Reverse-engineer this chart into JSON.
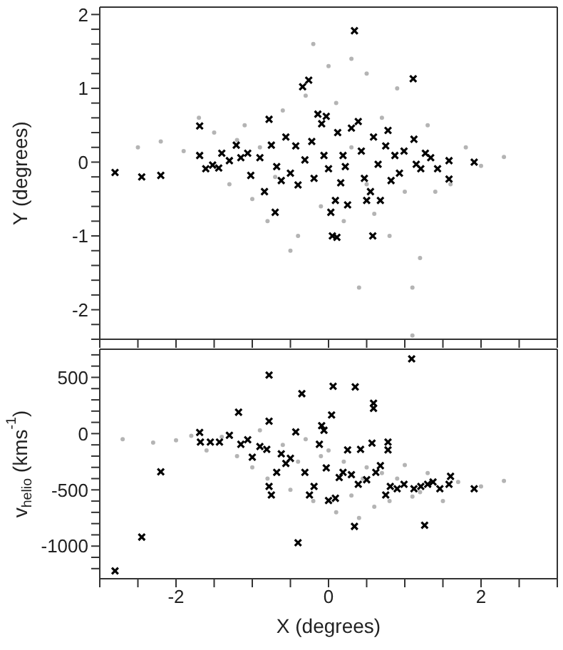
{
  "chart_data": [
    {
      "type": "scatter",
      "ylabel": "Y (degrees)",
      "tick_labels": "y",
      "xlim": [
        -3,
        3
      ],
      "xticks": [
        {
          "value": -3,
          "label": null
        },
        {
          "value": -2.5,
          "label": null
        },
        -2,
        {
          "value": -1.5,
          "label": null
        },
        {
          "value": -1,
          "label": null
        },
        {
          "value": -0.5,
          "label": null
        },
        0,
        {
          "value": 0.5,
          "label": null
        },
        {
          "value": 1,
          "label": null
        },
        {
          "value": 1.5,
          "label": null
        },
        2,
        {
          "value": 2.5,
          "label": null
        },
        {
          "value": 3,
          "label": null
        }
      ],
      "ylim": [
        -2.4,
        2.1
      ],
      "yticks": [
        {
          "value": -2.4,
          "label": null
        },
        {
          "value": -2.2,
          "label": null
        },
        -2,
        {
          "value": -1.8,
          "label": null
        },
        {
          "value": -1.6,
          "label": null
        },
        {
          "value": -1.4,
          "label": null
        },
        {
          "value": -1.2,
          "label": null
        },
        -1,
        {
          "value": -0.8,
          "label": null
        },
        {
          "value": -0.6,
          "label": null
        },
        {
          "value": -0.4,
          "label": null
        },
        {
          "value": -0.2,
          "label": null
        },
        0,
        {
          "value": 0.2,
          "label": null
        },
        {
          "value": 0.4,
          "label": null
        },
        {
          "value": 0.6,
          "label": null
        },
        {
          "value": 0.8,
          "label": null
        },
        1,
        {
          "value": 1.2,
          "label": null
        },
        {
          "value": 1.4,
          "label": null
        },
        {
          "value": 1.6,
          "label": null
        },
        {
          "value": 1.8,
          "label": null
        },
        2
      ],
      "series": [
        {
          "type": "scatter",
          "marker": "circle",
          "color": "#b4b4b4",
          "x": [
            -2.5,
            -2.2,
            -1.9,
            -1.7,
            -1.5,
            -1.3,
            -1.1,
            -1.0,
            -0.8,
            -0.6,
            -0.5,
            -0.4,
            -0.3,
            -0.2,
            -0.1,
            0.0,
            0.1,
            0.2,
            0.3,
            0.4,
            0.5,
            0.6,
            0.7,
            0.8,
            0.9,
            1.0,
            1.1,
            1.2,
            1.3,
            1.4,
            1.6,
            1.8,
            2.0,
            2.3,
            -0.9,
            -0.7,
            0.3,
            0.5,
            1.1,
            -1.2
          ],
          "values": [
            0.2,
            0.28,
            0.15,
            0.6,
            0.4,
            -0.3,
            0.5,
            -0.5,
            -0.8,
            0.7,
            -1.2,
            -1.0,
            0.9,
            1.6,
            -0.6,
            1.3,
            0.8,
            -0.8,
            1.4,
            -1.7,
            1.2,
            -0.7,
            0.6,
            -1.0,
            1.0,
            -0.4,
            -1.7,
            -1.3,
            0.5,
            -0.4,
            -0.3,
            0.2,
            -0.05,
            0.07,
            0.2,
            -0.2,
            0.2,
            -0.3,
            -2.35,
            0.3
          ]
        },
        {
          "type": "scatter",
          "marker": "cross",
          "color": "#000000",
          "x": [
            -2.8,
            -2.45,
            -2.2,
            -1.69,
            -1.69,
            -1.61,
            -1.52,
            -1.44,
            -1.4,
            -1.3,
            -1.21,
            -1.15,
            -1.06,
            -1.02,
            -0.9,
            -0.84,
            -0.78,
            -0.75,
            -0.7,
            -0.68,
            -0.62,
            -0.56,
            -0.5,
            -0.43,
            -0.4,
            -0.34,
            -0.26,
            -0.31,
            -0.22,
            -0.19,
            -0.14,
            -0.09,
            -0.06,
            -0.03,
            0.0,
            0.03,
            0.05,
            0.11,
            0.09,
            0.12,
            0.16,
            0.19,
            0.22,
            0.25,
            0.3,
            0.34,
            0.39,
            0.43,
            0.47,
            0.5,
            0.55,
            0.58,
            0.59,
            0.65,
            0.68,
            0.75,
            0.78,
            0.82,
            0.87,
            0.93,
            0.99,
            1.11,
            1.12,
            1.15,
            1.21,
            1.27,
            1.34,
            1.43,
            1.58,
            1.58,
            1.91
          ],
          "values": [
            -0.14,
            -0.2,
            -0.18,
            0.49,
            0.09,
            -0.09,
            -0.04,
            -0.08,
            0.12,
            0.02,
            0.23,
            0.06,
            0.12,
            -0.18,
            0.06,
            -0.4,
            0.58,
            0.23,
            -0.68,
            -0.06,
            -0.25,
            0.34,
            -0.15,
            0.22,
            -0.31,
            1.02,
            1.11,
            0.03,
            0.28,
            -0.22,
            0.65,
            0.52,
            0.09,
            0.62,
            -0.09,
            -0.68,
            -1.0,
            -1.02,
            -0.52,
            0.4,
            -0.28,
            0.09,
            -0.06,
            -0.58,
            0.46,
            1.78,
            0.55,
            0.15,
            -0.22,
            -0.52,
            -0.4,
            -1.0,
            0.34,
            -0.03,
            -0.52,
            0.22,
            0.43,
            -0.25,
            0.09,
            -0.15,
            0.15,
            1.13,
            0.31,
            -0.03,
            -0.09,
            0.12,
            0.06,
            -0.09,
            0.02,
            -0.23,
            0.0
          ]
        }
      ]
    },
    {
      "type": "scatter",
      "xlabel": "X (degrees)",
      "ylabel": "v$_{helio}$ (kms$^{-1}$)",
      "xlim": [
        -3,
        3
      ],
      "xticks": [
        {
          "value": -3,
          "label": null
        },
        {
          "value": -2.5,
          "label": null
        },
        -2,
        {
          "value": -1.5,
          "label": null
        },
        {
          "value": -1,
          "label": null
        },
        {
          "value": -0.5,
          "label": null
        },
        0,
        {
          "value": 0.5,
          "label": null
        },
        {
          "value": 1,
          "label": null
        },
        {
          "value": 1.5,
          "label": null
        },
        2,
        {
          "value": 2.5,
          "label": null
        },
        {
          "value": 3,
          "label": null
        }
      ],
      "ylim": [
        -1290,
        750
      ],
      "yticks": [
        {
          "value": -1200,
          "label": null
        },
        {
          "value": -1100,
          "label": null
        },
        -1000,
        {
          "value": -900,
          "label": null
        },
        {
          "value": -800,
          "label": null
        },
        {
          "value": -700,
          "label": null
        },
        {
          "value": -600,
          "label": null
        },
        -500,
        {
          "value": -400,
          "label": null
        },
        {
          "value": -300,
          "label": null
        },
        {
          "value": -200,
          "label": null
        },
        {
          "value": -100,
          "label": null
        },
        0,
        {
          "value": 100,
          "label": null
        },
        {
          "value": 200,
          "label": null
        },
        {
          "value": 300,
          "label": null
        },
        {
          "value": 400,
          "label": null
        },
        500,
        {
          "value": 600,
          "label": null
        },
        {
          "value": 700,
          "label": null
        }
      ],
      "series": [
        {
          "type": "scatter",
          "marker": "circle",
          "color": "#b4b4b4",
          "x": [
            -2.7,
            -2.3,
            -2.0,
            -1.8,
            -1.6,
            -1.4,
            -1.2,
            -1.0,
            -0.9,
            -0.8,
            -0.6,
            -0.5,
            -0.3,
            -0.2,
            -0.1,
            0.1,
            0.2,
            0.3,
            0.4,
            0.5,
            0.6,
            0.7,
            0.8,
            0.9,
            1.0,
            1.1,
            1.3,
            1.5,
            1.7,
            2.0,
            2.3,
            0.0,
            -0.4,
            0.45,
            1.2
          ],
          "values": [
            -50,
            -80,
            -60,
            -20,
            -150,
            -30,
            -200,
            -300,
            30,
            -400,
            -100,
            -500,
            -50,
            -600,
            -200,
            -700,
            -250,
            -550,
            -750,
            -300,
            -650,
            -350,
            -600,
            -400,
            -280,
            -560,
            -350,
            -600,
            -430,
            -470,
            -420,
            -150,
            -250,
            -400,
            -520
          ]
        },
        {
          "type": "scatter",
          "marker": "cross",
          "color": "#000000",
          "x": [
            -2.8,
            -2.45,
            -2.2,
            -1.69,
            -1.68,
            -1.55,
            -1.43,
            -1.3,
            -1.18,
            -1.15,
            -1.06,
            -1.0,
            -0.9,
            -0.81,
            -0.78,
            -0.78,
            -0.78,
            -0.75,
            -0.68,
            -0.62,
            -0.56,
            -0.5,
            -0.43,
            -0.4,
            -0.35,
            -0.31,
            -0.25,
            -0.19,
            -0.12,
            -0.09,
            -0.06,
            -0.03,
            0.0,
            0.04,
            0.06,
            0.09,
            0.14,
            0.19,
            0.25,
            0.3,
            0.34,
            0.35,
            0.39,
            0.42,
            0.5,
            0.57,
            0.59,
            0.59,
            0.62,
            0.68,
            0.75,
            0.78,
            0.78,
            0.81,
            0.9,
            0.99,
            1.09,
            1.12,
            1.21,
            1.26,
            1.3,
            1.37,
            1.46,
            1.58,
            1.6,
            1.91
          ],
          "values": [
            -1220,
            -920,
            -340,
            10,
            -75,
            -75,
            -75,
            -15,
            190,
            -95,
            -55,
            -210,
            -115,
            -140,
            520,
            110,
            -470,
            -545,
            -345,
            -180,
            -265,
            -220,
            15,
            -970,
            355,
            -345,
            -545,
            -470,
            -95,
            70,
            30,
            -305,
            -595,
            165,
            420,
            -575,
            -390,
            -345,
            -145,
            -365,
            -825,
            415,
            -450,
            -140,
            -410,
            -85,
            270,
            225,
            -345,
            -285,
            -545,
            -75,
            -145,
            -470,
            -490,
            -450,
            665,
            -490,
            -470,
            -815,
            -450,
            -430,
            -490,
            -450,
            -380,
            -490
          ]
        }
      ]
    }
  ]
}
